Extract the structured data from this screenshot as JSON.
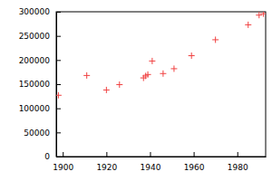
{
  "chart_data": {
    "type": "scatter",
    "x": [
      1898,
      1911,
      1920,
      1926,
      1937,
      1938,
      1939,
      1941,
      1946,
      1951,
      1959,
      1970,
      1985,
      1990,
      1992
    ],
    "values": [
      127000,
      168000,
      138000,
      149000,
      163000,
      167000,
      170000,
      198000,
      172000,
      182000,
      209000,
      242000,
      273000,
      293000,
      296000
    ],
    "color": "#f04040",
    "marker": "plus",
    "xlim": [
      1897,
      1993
    ],
    "xticks": [
      1900,
      1920,
      1940,
      1960,
      1980
    ],
    "ylim": [
      0,
      300000
    ],
    "yticks": [
      0,
      50000,
      100000,
      150000,
      200000,
      250000,
      300000
    ],
    "grid": false
  }
}
